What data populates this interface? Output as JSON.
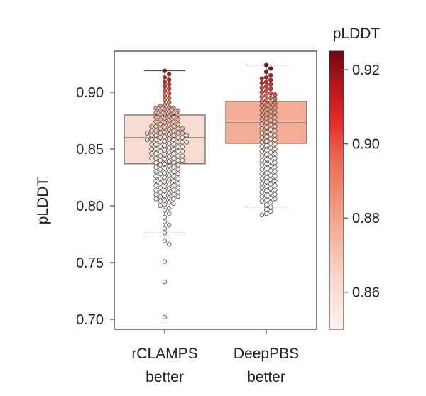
{
  "chart_data": {
    "type": "box-swarm",
    "ylabel": "pLDDT",
    "ylim": [
      0.692,
      0.932
    ],
    "yticks": [
      0.7,
      0.75,
      0.8,
      0.85,
      0.9
    ],
    "ytick_labels": [
      "0.70",
      "0.75",
      "0.80",
      "0.85",
      "0.90"
    ],
    "categories": [
      {
        "line1": "rCLAMPS",
        "line2": "better"
      },
      {
        "line1": "DeepPBS",
        "line2": "better"
      }
    ],
    "boxes": [
      {
        "q1": 0.837,
        "median": 0.86,
        "q3": 0.88,
        "whisker_low": 0.776,
        "whisker_high": 0.919,
        "box_color": "#f9dcd1"
      },
      {
        "q1": 0.855,
        "median": 0.873,
        "q3": 0.892,
        "whisker_low": 0.799,
        "whisker_high": 0.924,
        "box_color": "#f3ad96"
      }
    ],
    "points": [
      [
        0.919,
        0.916,
        0.913,
        0.911,
        0.909,
        0.907,
        0.905,
        0.903,
        0.901,
        0.899,
        0.897,
        0.895,
        0.893,
        0.891,
        0.889,
        0.887,
        0.886,
        0.885,
        0.884,
        0.883,
        0.882,
        0.881,
        0.88,
        0.879,
        0.878,
        0.877,
        0.876,
        0.875,
        0.874,
        0.873,
        0.872,
        0.871,
        0.87,
        0.869,
        0.868,
        0.867,
        0.866,
        0.865,
        0.864,
        0.863,
        0.862,
        0.861,
        0.86,
        0.859,
        0.858,
        0.857,
        0.856,
        0.855,
        0.854,
        0.853,
        0.852,
        0.851,
        0.85,
        0.849,
        0.848,
        0.847,
        0.846,
        0.845,
        0.844,
        0.843,
        0.842,
        0.841,
        0.84,
        0.839,
        0.838,
        0.837,
        0.836,
        0.835,
        0.834,
        0.833,
        0.832,
        0.831,
        0.83,
        0.829,
        0.828,
        0.827,
        0.826,
        0.825,
        0.824,
        0.823,
        0.822,
        0.821,
        0.82,
        0.819,
        0.818,
        0.817,
        0.816,
        0.815,
        0.814,
        0.813,
        0.812,
        0.811,
        0.81,
        0.809,
        0.808,
        0.807,
        0.806,
        0.805,
        0.804,
        0.803,
        0.802,
        0.801,
        0.8,
        0.798,
        0.796,
        0.793,
        0.79,
        0.786,
        0.783,
        0.78,
        0.776,
        0.769,
        0.766,
        0.751,
        0.733,
        0.702,
        0.88,
        0.878,
        0.876,
        0.874,
        0.872,
        0.87,
        0.868,
        0.866,
        0.864,
        0.862,
        0.86,
        0.858,
        0.856,
        0.854,
        0.852,
        0.85,
        0.848,
        0.846,
        0.844,
        0.842,
        0.84,
        0.838,
        0.836,
        0.834,
        0.832,
        0.83,
        0.828,
        0.826,
        0.824,
        0.822,
        0.82,
        0.818,
        0.816,
        0.814,
        0.812,
        0.81,
        0.808,
        0.806,
        0.864,
        0.862,
        0.858,
        0.856,
        0.854,
        0.852,
        0.85,
        0.848,
        0.846,
        0.844,
        0.842,
        0.84,
        0.888,
        0.886,
        0.884,
        0.882,
        0.87,
        0.868,
        0.866,
        0.864,
        0.862,
        0.86,
        0.858,
        0.856
      ],
      [
        0.924,
        0.921,
        0.918,
        0.915,
        0.913,
        0.911,
        0.909,
        0.907,
        0.905,
        0.903,
        0.901,
        0.899,
        0.897,
        0.895,
        0.893,
        0.891,
        0.889,
        0.887,
        0.885,
        0.883,
        0.881,
        0.879,
        0.877,
        0.875,
        0.873,
        0.871,
        0.869,
        0.867,
        0.865,
        0.863,
        0.861,
        0.859,
        0.857,
        0.855,
        0.853,
        0.851,
        0.849,
        0.847,
        0.845,
        0.843,
        0.841,
        0.839,
        0.837,
        0.835,
        0.833,
        0.831,
        0.829,
        0.827,
        0.825,
        0.823,
        0.821,
        0.819,
        0.817,
        0.815,
        0.813,
        0.811,
        0.809,
        0.807,
        0.805,
        0.803,
        0.801,
        0.799,
        0.797,
        0.795,
        0.793,
        0.792,
        0.912,
        0.908,
        0.904,
        0.9,
        0.896,
        0.892,
        0.888,
        0.884,
        0.88,
        0.876,
        0.872,
        0.868,
        0.864,
        0.86,
        0.856,
        0.852,
        0.848,
        0.844,
        0.84,
        0.836,
        0.832,
        0.828,
        0.824,
        0.82,
        0.816,
        0.812,
        0.808,
        0.804,
        0.898,
        0.894,
        0.89,
        0.886,
        0.882,
        0.878,
        0.874,
        0.87,
        0.866,
        0.862,
        0.858,
        0.854,
        0.85,
        0.846,
        0.842,
        0.838,
        0.834,
        0.83,
        0.826,
        0.822,
        0.818,
        0.814,
        0.81,
        0.806
      ]
    ],
    "colorbar": {
      "title": "pLDDT",
      "range": [
        0.85,
        0.925
      ],
      "ticks": [
        0.86,
        0.88,
        0.9,
        0.92
      ],
      "tick_labels": [
        "0.86",
        "0.88",
        "0.90",
        "0.92"
      ],
      "colormap": "Reds",
      "color_low": "#fbece6",
      "color_mid": "#e8523f",
      "color_high": "#6d0813"
    },
    "grid": false
  }
}
